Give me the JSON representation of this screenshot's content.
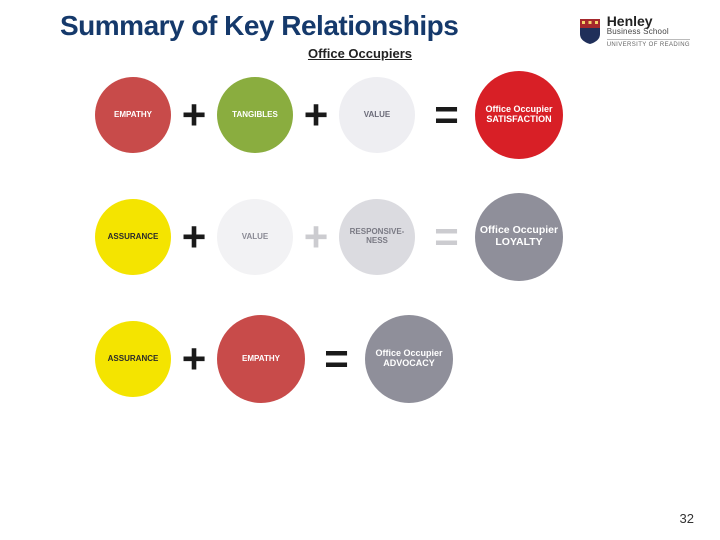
{
  "title": "Summary of Key Relationships",
  "logo": {
    "name": "Henley",
    "sub": "Business School",
    "university": "UNIVERSITY OF READING",
    "shield_top_color": "#a4282c",
    "shield_bottom_color": "#1f2f5a"
  },
  "section_title": "Office Occupiers",
  "page_number": "32",
  "colors": {
    "title_text": "#15396b",
    "op_dark": "#1a1a1a",
    "op_light": "#ccccd0",
    "background": "#ffffff"
  },
  "rows": [
    {
      "nodes": [
        {
          "label": "EMPATHY",
          "bg": "#c84b4a",
          "fg": "#ffffff",
          "fontClass": "lbl-sm",
          "size": "circle"
        },
        {
          "op": "+",
          "opClass": "op"
        },
        {
          "label": "TANGIBLES",
          "bg": "#8aad3f",
          "fg": "#ffffff",
          "fontClass": "lbl-sm",
          "size": "circle"
        },
        {
          "op": "+",
          "opClass": "op"
        },
        {
          "label": "VALUE",
          "bg": "#eeeef2",
          "fg": "#6a6a78",
          "fontClass": "lbl-sm",
          "size": "circle"
        },
        {
          "op": "=",
          "opClass": "op-wide"
        },
        {
          "label": "Office Occupier SATISFACTION",
          "bg": "#d81f26",
          "fg": "#ffffff",
          "fontClass": "lbl-md",
          "size": "circle-lg"
        }
      ]
    },
    {
      "nodes": [
        {
          "label": "ASSURANCE",
          "bg": "#f4e400",
          "fg": "#2a2a2a",
          "fontClass": "lbl-sm",
          "size": "circle"
        },
        {
          "op": "+",
          "opClass": "op"
        },
        {
          "label": "VALUE",
          "bg": "#f2f2f4",
          "fg": "#8a8a94",
          "fontClass": "lbl-sm",
          "size": "circle"
        },
        {
          "op": "+",
          "opClass": "op op-light"
        },
        {
          "label": "RESPONSIVE- NESS",
          "bg": "#dbdbe0",
          "fg": "#7a7a84",
          "fontClass": "lbl-sm",
          "size": "circle"
        },
        {
          "op": "=",
          "opClass": "op-wide op-light"
        },
        {
          "label": "Office Occupier LOYALTY",
          "bg": "#8f8f9a",
          "fg": "#ffffff",
          "fontClass": "lbl-lg",
          "size": "circle-lg"
        }
      ]
    },
    {
      "nodes": [
        {
          "label": "ASSURANCE",
          "bg": "#f4e400",
          "fg": "#2a2a2a",
          "fontClass": "lbl-sm",
          "size": "circle"
        },
        {
          "op": "+",
          "opClass": "op"
        },
        {
          "label": "EMPATHY",
          "bg": "#c84b4a",
          "fg": "#ffffff",
          "fontClass": "lbl-sm",
          "size": "circle-lg"
        },
        {
          "op": "=",
          "opClass": "op-wide"
        },
        {
          "label": "Office Occupier ADVOCACY",
          "bg": "#8f8f9a",
          "fg": "#ffffff",
          "fontClass": "lbl-md",
          "size": "circle-lg"
        }
      ]
    }
  ]
}
